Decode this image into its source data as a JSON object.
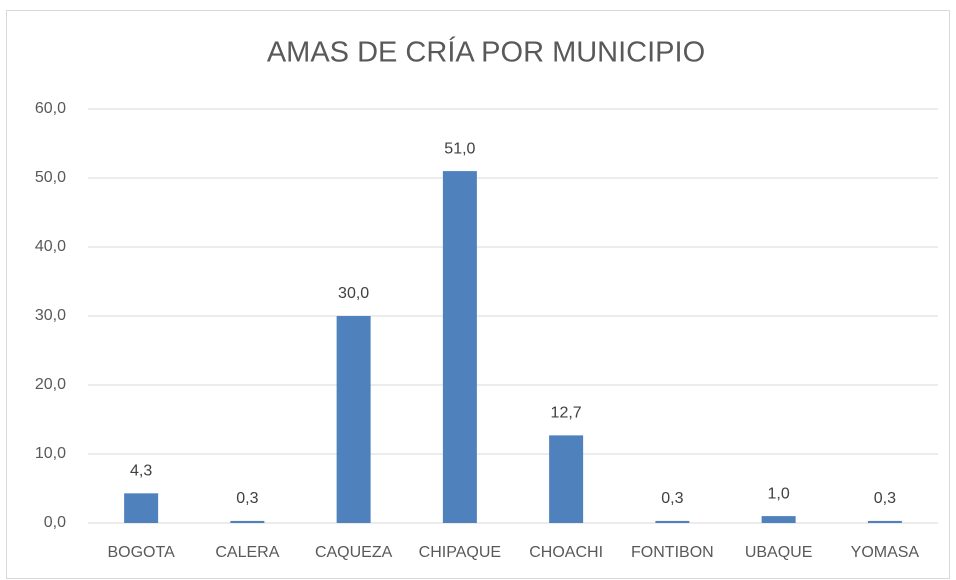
{
  "chart_data": {
    "type": "bar",
    "title": "AMAS DE CRÍA POR MUNICIPIO",
    "categories": [
      "BOGOTA",
      "CALERA",
      "CAQUEZA",
      "CHIPAQUE",
      "CHOACHI",
      "FONTIBON",
      "UBAQUE",
      "YOMASA"
    ],
    "values": [
      4.3,
      0.3,
      30.0,
      51.0,
      12.7,
      0.3,
      1.0,
      0.3
    ],
    "value_labels": [
      "4,3",
      "0,3",
      "30,0",
      "51,0",
      "12,7",
      "0,3",
      "1,0",
      "0,3"
    ],
    "color": "#4f81bd",
    "ylim": [
      0,
      60
    ],
    "yticks": [
      {
        "value": 0,
        "label": "0,0"
      },
      {
        "value": 10,
        "label": "10,0"
      },
      {
        "value": 20,
        "label": "20,0"
      },
      {
        "value": 30,
        "label": "30,0"
      },
      {
        "value": 40,
        "label": "40,0"
      },
      {
        "value": 50,
        "label": "50,0"
      },
      {
        "value": 60,
        "label": "60,0"
      }
    ],
    "grid": true
  }
}
